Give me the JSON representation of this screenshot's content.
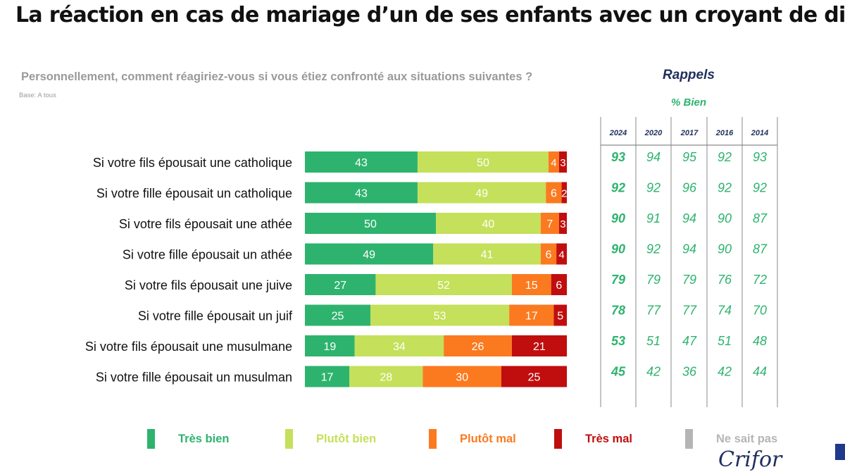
{
  "title": "La réaction en cas de mariage d’un de ses enfants avec un croyant de différentes religions",
  "subtitle": "Personnellement, comment réagiriez-vous si vous étiez confronté aux situations suivantes ?",
  "base": "Base: A tous",
  "rappels": {
    "title": "Rappels",
    "subtitle": "% Bien"
  },
  "brand": "Crifor",
  "chart_data": {
    "type": "bar",
    "orientation": "horizontal",
    "stacked": true,
    "xlim": [
      0,
      100
    ],
    "grid": false,
    "legend_placement": "bottom",
    "categories": [
      "Si votre fils épousait une catholique",
      "Si votre fille épousait un catholique",
      "Si votre fils épousait une athée",
      "Si votre fille épousait un athée",
      "Si votre fils épousait une juive",
      "Si votre fille épousait un juif",
      "Si votre fils épousait une musulmane",
      "Si votre fille épousait un musulman"
    ],
    "series": [
      {
        "name": "Très bien",
        "color": "#2eb36e",
        "values": [
          43,
          43,
          50,
          49,
          27,
          25,
          19,
          17
        ]
      },
      {
        "name": "Plutôt bien",
        "color": "#c5e05a",
        "values": [
          50,
          49,
          40,
          41,
          52,
          53,
          34,
          28
        ]
      },
      {
        "name": "Plutôt mal",
        "color": "#fb7a1f",
        "values": [
          4,
          6,
          7,
          6,
          15,
          17,
          26,
          30
        ]
      },
      {
        "name": "Très mal",
        "color": "#c00e0e",
        "values": [
          3,
          2,
          3,
          4,
          6,
          5,
          21,
          25
        ]
      },
      {
        "name": "Ne sait pas",
        "color": "#b5b5b5",
        "values": [
          0,
          0,
          0,
          0,
          0,
          0,
          0,
          0
        ]
      }
    ]
  },
  "rappels_table": {
    "years": [
      "2024",
      "2020",
      "2017",
      "2016",
      "2014"
    ],
    "rows": [
      [
        93,
        94,
        95,
        92,
        93
      ],
      [
        92,
        92,
        96,
        92,
        92
      ],
      [
        90,
        91,
        94,
        90,
        87
      ],
      [
        90,
        92,
        94,
        90,
        87
      ],
      [
        79,
        79,
        79,
        76,
        72
      ],
      [
        78,
        77,
        77,
        74,
        70
      ],
      [
        53,
        51,
        47,
        51,
        48
      ],
      [
        45,
        42,
        36,
        42,
        44
      ]
    ]
  },
  "colors": {
    "text": "#111111",
    "label_on_bar": "#ffffff",
    "table_line": "#8a8a8a",
    "ns_text": "#b5b5b5"
  }
}
